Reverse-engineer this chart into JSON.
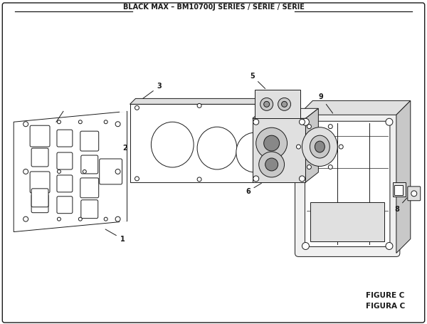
{
  "title": "BLACK MAX – BM10700J SERIES / SÉRIE / SERIE",
  "figure_label": "FIGURE C",
  "figure_label2": "FIGURA C",
  "bg_color": "#ffffff",
  "line_color": "#1a1a1a",
  "fill_light": "#f0f0f0",
  "fill_mid": "#e0e0e0",
  "fill_dark": "#c8c8c8"
}
